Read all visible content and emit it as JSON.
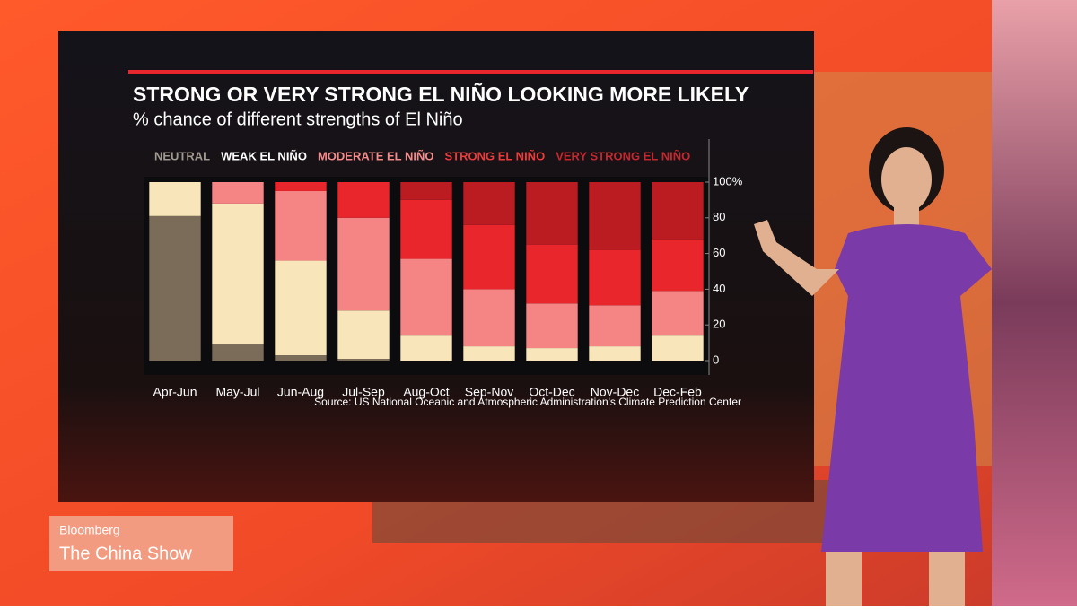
{
  "chart_data": {
    "type": "stacked_bar",
    "title": "STRONG OR VERY STRONG EL NIÑO LOOKING MORE LIKELY",
    "subtitle": "% chance of different strengths of El Niño",
    "source": "Source: US National Oceanic and Atmospheric Administration's Climate Prediction Center",
    "categories": [
      "Apr-Jun",
      "May-Jul",
      "Jun-Aug",
      "Jul-Sep",
      "Aug-Oct",
      "Sep-Nov",
      "Oct-Dec",
      "Nov-Dec",
      "Dec-Feb"
    ],
    "series": [
      {
        "name": "NEUTRAL",
        "color": "#7a6c58",
        "label_color": "#a09a90",
        "values": [
          81,
          9,
          3,
          1,
          0,
          0,
          0,
          0,
          0
        ]
      },
      {
        "name": "WEAK EL NIÑO",
        "color": "#f8e6ba",
        "label_color": "#ffffff",
        "values": [
          19,
          79,
          53,
          27,
          14,
          8,
          7,
          8,
          14
        ]
      },
      {
        "name": "MODERATE EL NIÑO",
        "color": "#f58585",
        "label_color": "#f48a8a",
        "values": [
          0,
          12,
          39,
          52,
          43,
          32,
          25,
          23,
          25
        ]
      },
      {
        "name": "STRONG EL NIÑO",
        "color": "#e8262c",
        "label_color": "#ef3a3a",
        "values": [
          0,
          0,
          5,
          20,
          33,
          36,
          33,
          31,
          29
        ]
      },
      {
        "name": "VERY STRONG EL NIÑO",
        "color": "#ba1c22",
        "label_color": "#c4282e",
        "values": [
          0,
          0,
          0,
          0,
          10,
          24,
          35,
          38,
          32
        ]
      }
    ],
    "ylim": [
      0,
      100
    ],
    "yticks": [
      0,
      20,
      40,
      60,
      80,
      {
        "value": 100,
        "label": "100%"
      }
    ]
  },
  "broadcast": {
    "brand": "Bloomberg",
    "show": "The China Show"
  }
}
